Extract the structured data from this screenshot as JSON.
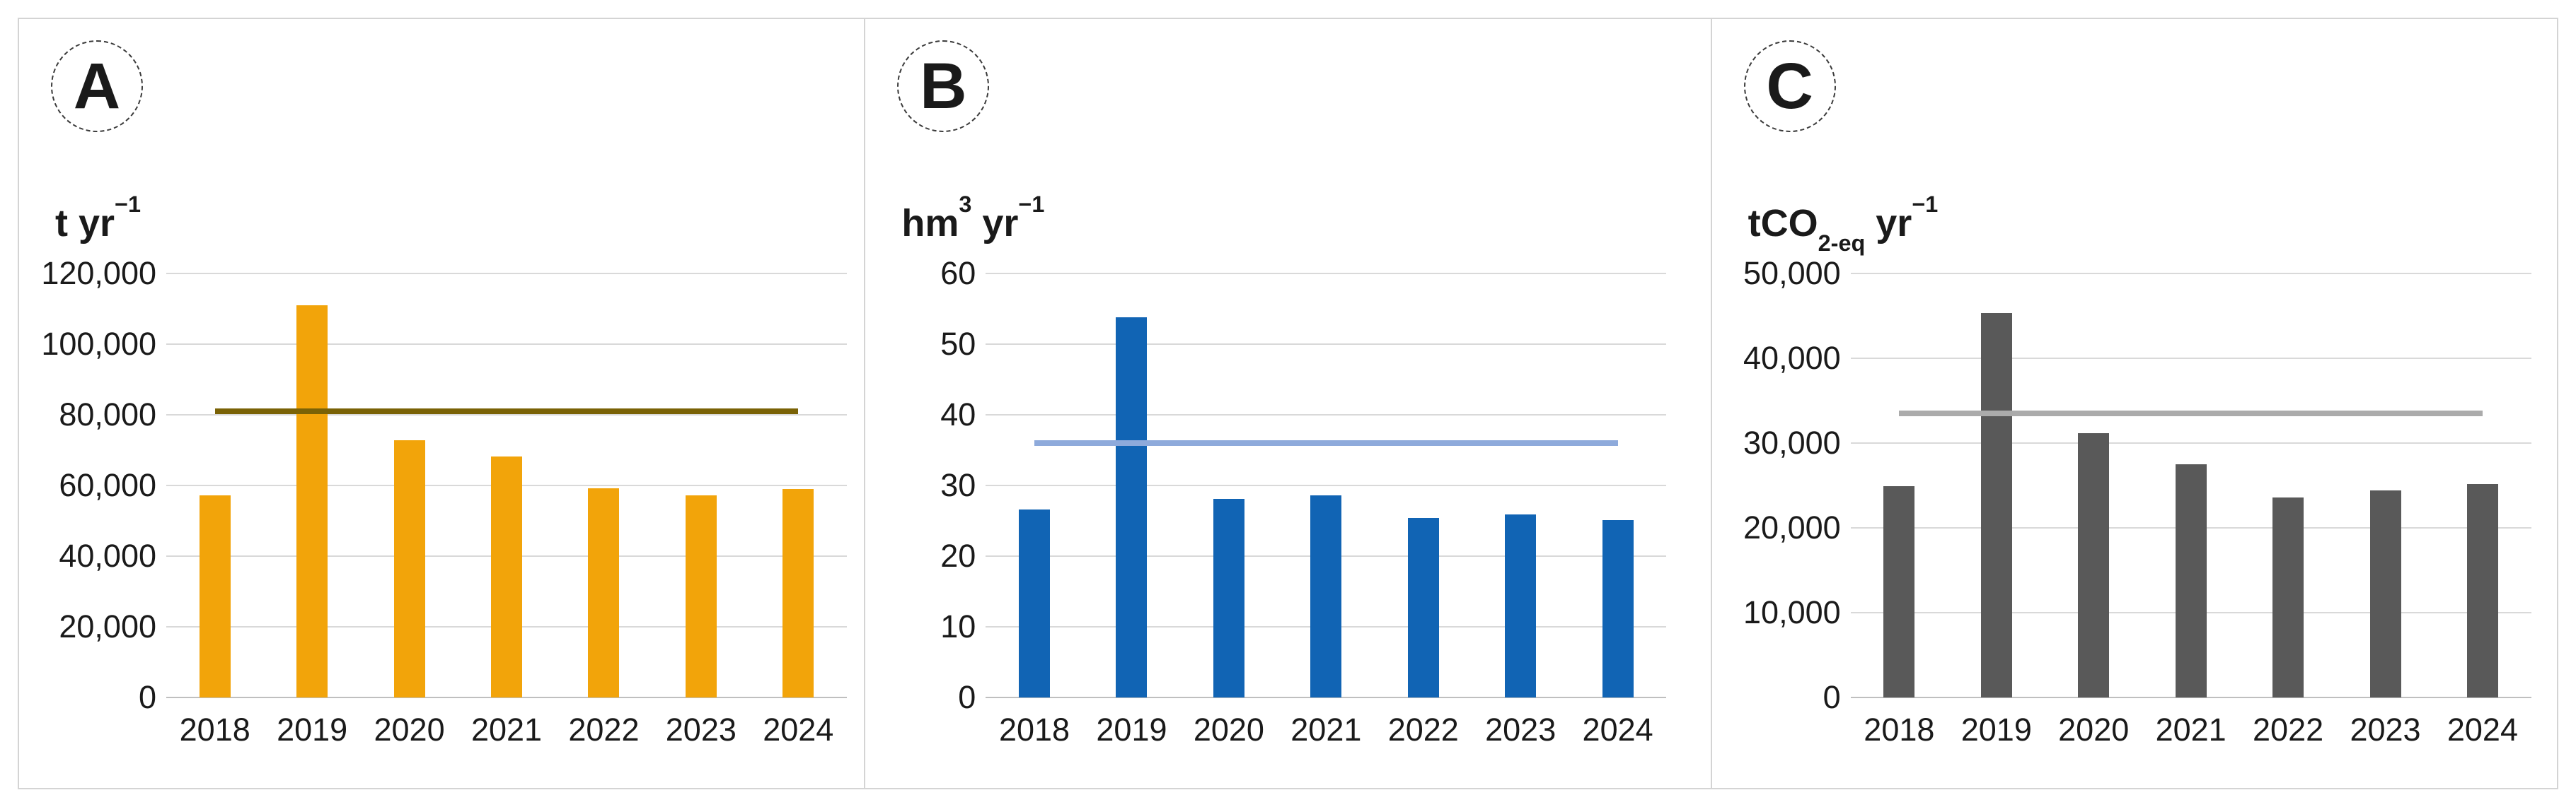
{
  "figure": {
    "panels": [
      {
        "letter": "A"
      },
      {
        "letter": "B"
      },
      {
        "letter": "C"
      }
    ]
  },
  "colors": {
    "background": "#ffffff",
    "panel_border": "#d4d4d4",
    "gridline": "#d9d9d9",
    "axis_line": "#bfbfbf",
    "text": "#1a1a1a"
  },
  "chart_data": [
    {
      "type": "bar",
      "panel_label": "A",
      "title": "",
      "unit_segments": [
        {
          "t": "t yr"
        },
        {
          "sup": "−1"
        }
      ],
      "categories": [
        "2018",
        "2019",
        "2020",
        "2021",
        "2022",
        "2023",
        "2024"
      ],
      "values": [
        57200,
        111000,
        72900,
        68300,
        59300,
        57300,
        59100
      ],
      "bar_color": "#f2a40a",
      "reference_line": {
        "value": 81000,
        "color": "#7a6206"
      },
      "ylim": [
        0,
        120000
      ],
      "ytick_step": 20000,
      "ytick_labels": [
        "0",
        "20,000",
        "40,000",
        "60,000",
        "80,000",
        "100,000",
        "120,000"
      ],
      "grid": true,
      "legend": "none"
    },
    {
      "type": "bar",
      "panel_label": "B",
      "title": "",
      "unit_segments": [
        {
          "t": "hm"
        },
        {
          "sup": "3"
        },
        {
          "t": " yr"
        },
        {
          "sup": "−1"
        }
      ],
      "categories": [
        "2018",
        "2019",
        "2020",
        "2021",
        "2022",
        "2023",
        "2024"
      ],
      "values": [
        26.6,
        53.8,
        28.1,
        28.6,
        25.4,
        25.9,
        25.1
      ],
      "bar_color": "#1164b4",
      "reference_line": {
        "value": 36,
        "color": "#8eaadb"
      },
      "ylim": [
        0,
        60
      ],
      "ytick_step": 10,
      "ytick_labels": [
        "0",
        "10",
        "20",
        "30",
        "40",
        "50",
        "60"
      ],
      "grid": true,
      "legend": "none"
    },
    {
      "type": "bar",
      "panel_label": "C",
      "title": "",
      "unit_segments": [
        {
          "t": "tCO"
        },
        {
          "sub": "2-eq"
        },
        {
          "t": " yr"
        },
        {
          "sup": "−1"
        }
      ],
      "categories": [
        "2018",
        "2019",
        "2020",
        "2021",
        "2022",
        "2023",
        "2024"
      ],
      "values": [
        24900,
        45300,
        31150,
        27500,
        23600,
        24400,
        25200
      ],
      "bar_color": "#595959",
      "reference_line": {
        "value": 33500,
        "color": "#ababab"
      },
      "ylim": [
        0,
        50000
      ],
      "ytick_step": 10000,
      "ytick_labels": [
        "0",
        "10,000",
        "20,000",
        "30,000",
        "40,000",
        "50,000"
      ],
      "grid": true,
      "legend": "none"
    }
  ]
}
